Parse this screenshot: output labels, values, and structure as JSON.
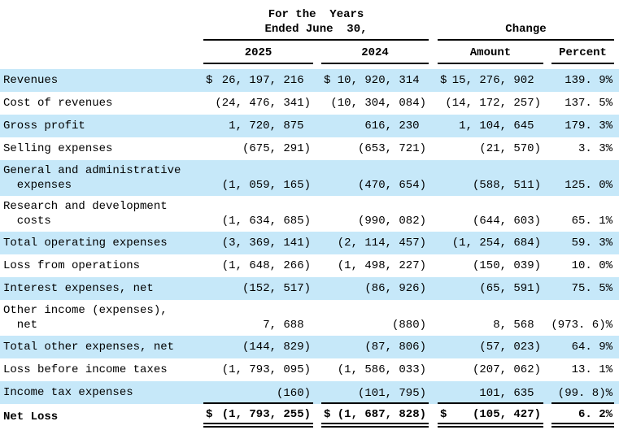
{
  "table": {
    "title_semantic": "statement-of-operations",
    "colors": {
      "row_highlight": "#C6E8F9",
      "text": "#000000",
      "rule": "#000000"
    },
    "header": {
      "years_group_line1": "For the  Years",
      "years_group_line2": "Ended June  30,",
      "change_group": "Change",
      "col_2025": "2025",
      "col_2024": "2024",
      "col_amount": "Amount",
      "col_percent": "Percent"
    },
    "rows": [
      {
        "label": "Revenues",
        "dollar": "$",
        "y2025": "26, 197, 216 ",
        "y2024": "10, 920, 314 ",
        "amount": "15, 276, 902 ",
        "percent": "139. 9%",
        "highlight": true
      },
      {
        "label": "Cost of revenues",
        "y2025": "(24, 476, 341)",
        "y2024": "(10, 304, 084)",
        "amount": "(14, 172, 257)",
        "percent": "137. 5%",
        "highlight": false
      },
      {
        "label": "Gross profit",
        "y2025": "1, 720, 875 ",
        "y2024": "616, 230 ",
        "amount": "1, 104, 645 ",
        "percent": "179. 3%",
        "highlight": true
      },
      {
        "label": "Selling expenses",
        "y2025": "(675, 291)",
        "y2024": "(653, 721)",
        "amount": "(21, 570)",
        "percent": "3. 3%",
        "highlight": false
      },
      {
        "label": "General and administrative\n  expenses",
        "y2025": "(1, 059, 165)",
        "y2024": "(470, 654)",
        "amount": "(588, 511)",
        "percent": "125. 0%",
        "highlight": true
      },
      {
        "label": "Research and development\n  costs",
        "y2025": "(1, 634, 685)",
        "y2024": "(990, 082)",
        "amount": "(644, 603)",
        "percent": "65. 1%",
        "highlight": false
      },
      {
        "label": "Total operating expenses",
        "y2025": "(3, 369, 141)",
        "y2024": "(2, 114, 457)",
        "amount": "(1, 254, 684)",
        "percent": "59. 3%",
        "highlight": true
      },
      {
        "label": "Loss from operations",
        "y2025": "(1, 648, 266)",
        "y2024": "(1, 498, 227)",
        "amount": "(150, 039)",
        "percent": "10. 0%",
        "highlight": false
      },
      {
        "label": "Interest expenses, net",
        "y2025": "(152, 517)",
        "y2024": "(86, 926)",
        "amount": "(65, 591)",
        "percent": "75. 5%",
        "highlight": true
      },
      {
        "label": "Other income (expenses),\n  net",
        "y2025": "7, 688 ",
        "y2024": "(880)",
        "amount": "8, 568 ",
        "percent": "(973. 6)%",
        "highlight": false
      },
      {
        "label": "Total other expenses, net",
        "y2025": "(144, 829)",
        "y2024": "(87, 806)",
        "amount": "(57, 023)",
        "percent": "64. 9%",
        "highlight": true
      },
      {
        "label": "Loss before income taxes",
        "y2025": "(1, 793, 095)",
        "y2024": "(1, 586, 033)",
        "amount": "(207, 062)",
        "percent": "13. 1%",
        "highlight": false
      },
      {
        "label": "Income tax expenses",
        "y2025": "(160)",
        "y2024": "(101, 795)",
        "amount": "101, 635 ",
        "percent": "(99. 8)%",
        "highlight": true
      },
      {
        "label": "Net Loss",
        "dollar": "$",
        "y2025": "(1, 793, 255)",
        "y2024": "(1, 687, 828)",
        "amount": "(105, 427)",
        "percent": "6. 2%",
        "highlight": false
      }
    ]
  }
}
